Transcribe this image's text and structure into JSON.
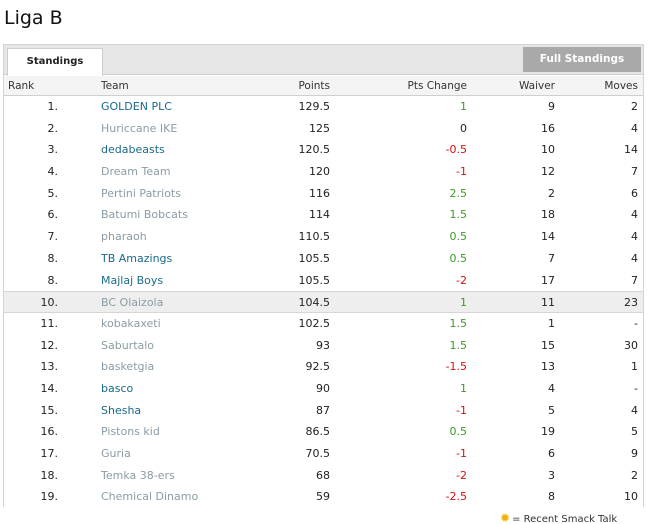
{
  "league": {
    "title": "Liga B"
  },
  "tabs": {
    "standings": "Standings",
    "full_standings": "Full Standings"
  },
  "columns": {
    "rank": "Rank",
    "team": "Team",
    "points": "Points",
    "pts_change": "Pts Change",
    "waiver": "Waiver",
    "moves": "Moves"
  },
  "rows": [
    {
      "rank": "1.",
      "team": "GOLDEN PLC",
      "team_active": true,
      "points": "129.5",
      "change": "1",
      "change_sign": "pos",
      "waiver": "9",
      "moves": "2",
      "highlight": false
    },
    {
      "rank": "2.",
      "team": "Huriccane IKE",
      "team_active": false,
      "points": "125",
      "change": "0",
      "change_sign": "zero",
      "waiver": "16",
      "moves": "4",
      "highlight": false
    },
    {
      "rank": "3.",
      "team": "dedabeasts",
      "team_active": true,
      "points": "120.5",
      "change": "-0.5",
      "change_sign": "neg",
      "waiver": "10",
      "moves": "14",
      "highlight": false
    },
    {
      "rank": "4.",
      "team": "Dream Team",
      "team_active": false,
      "points": "120",
      "change": "-1",
      "change_sign": "neg",
      "waiver": "12",
      "moves": "7",
      "highlight": false
    },
    {
      "rank": "5.",
      "team": "Pertini Patriots",
      "team_active": false,
      "points": "116",
      "change": "2.5",
      "change_sign": "pos",
      "waiver": "2",
      "moves": "6",
      "highlight": false
    },
    {
      "rank": "6.",
      "team": "Batumi Bobcats",
      "team_active": false,
      "points": "114",
      "change": "1.5",
      "change_sign": "pos",
      "waiver": "18",
      "moves": "4",
      "highlight": false
    },
    {
      "rank": "7.",
      "team": "pharaoh",
      "team_active": false,
      "points": "110.5",
      "change": "0.5",
      "change_sign": "pos",
      "waiver": "14",
      "moves": "4",
      "highlight": false
    },
    {
      "rank": "8.",
      "team": "TB Amazings",
      "team_active": true,
      "points": "105.5",
      "change": "0.5",
      "change_sign": "pos",
      "waiver": "7",
      "moves": "4",
      "highlight": false
    },
    {
      "rank": "8.",
      "team": "Majlaj Boys",
      "team_active": true,
      "points": "105.5",
      "change": "-2",
      "change_sign": "neg",
      "waiver": "17",
      "moves": "7",
      "highlight": false
    },
    {
      "rank": "10.",
      "team": "BC Olaizola",
      "team_active": false,
      "points": "104.5",
      "change": "1",
      "change_sign": "pos",
      "waiver": "11",
      "moves": "23",
      "highlight": true
    },
    {
      "rank": "11.",
      "team": "kobakaxeti",
      "team_active": false,
      "points": "102.5",
      "change": "1.5",
      "change_sign": "pos",
      "waiver": "1",
      "moves": "-",
      "highlight": false
    },
    {
      "rank": "12.",
      "team": "Saburtalo",
      "team_active": false,
      "points": "93",
      "change": "1.5",
      "change_sign": "pos",
      "waiver": "15",
      "moves": "30",
      "highlight": false
    },
    {
      "rank": "13.",
      "team": "basketgia",
      "team_active": false,
      "points": "92.5",
      "change": "-1.5",
      "change_sign": "neg",
      "waiver": "13",
      "moves": "1",
      "highlight": false
    },
    {
      "rank": "14.",
      "team": "basco",
      "team_active": true,
      "points": "90",
      "change": "1",
      "change_sign": "pos",
      "waiver": "4",
      "moves": "-",
      "highlight": false
    },
    {
      "rank": "15.",
      "team": "Shesha",
      "team_active": true,
      "points": "87",
      "change": "-1",
      "change_sign": "neg",
      "waiver": "5",
      "moves": "4",
      "highlight": false
    },
    {
      "rank": "16.",
      "team": "Pistons kid",
      "team_active": false,
      "points": "86.5",
      "change": "0.5",
      "change_sign": "pos",
      "waiver": "19",
      "moves": "5",
      "highlight": false
    },
    {
      "rank": "17.",
      "team": "Guria",
      "team_active": false,
      "points": "70.5",
      "change": "-1",
      "change_sign": "neg",
      "waiver": "6",
      "moves": "9",
      "highlight": false
    },
    {
      "rank": "18.",
      "team": "Temka 38-ers",
      "team_active": false,
      "points": "68",
      "change": "-2",
      "change_sign": "neg",
      "waiver": "3",
      "moves": "2",
      "highlight": false
    },
    {
      "rank": "19.",
      "team": "Chemical Dinamo",
      "team_active": false,
      "points": "59",
      "change": "-2.5",
      "change_sign": "neg",
      "waiver": "8",
      "moves": "10",
      "highlight": false
    }
  ],
  "footer": {
    "icon": "sun-icon",
    "text": "= Recent Smack Talk"
  },
  "colors": {
    "active_team": "#1a6a8a",
    "inactive_team": "#8b9ca4",
    "positive": "#3d9a24",
    "negative": "#d21010"
  }
}
